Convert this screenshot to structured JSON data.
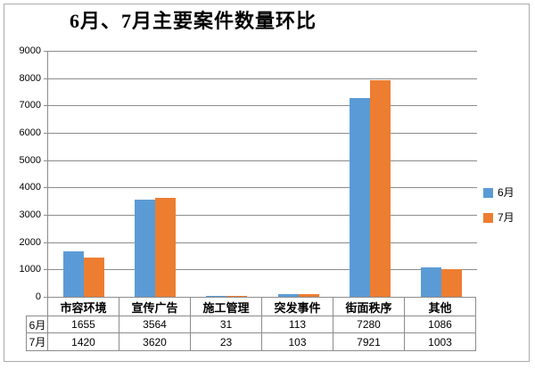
{
  "title": "6月、7月主要案件数量环比",
  "colors": {
    "series_june": "#5B9BD5",
    "series_july": "#ED7D31",
    "gridline": "#8c8c8c",
    "frame_border": "#ababab",
    "text": "#000000"
  },
  "chart_data": {
    "type": "bar",
    "title": "6月、7月主要案件数量环比",
    "categories": [
      "市容环境",
      "宣传广告",
      "施工管理",
      "突发事件",
      "街面秩序",
      "其他"
    ],
    "series": [
      {
        "name": "6月",
        "color": "#5B9BD5",
        "values": [
          1655,
          3564,
          31,
          113,
          7280,
          1086
        ]
      },
      {
        "name": "7月",
        "color": "#ED7D31",
        "values": [
          1420,
          3620,
          23,
          103,
          7921,
          1003
        ]
      }
    ],
    "xlabel": "",
    "ylabel": "",
    "ylim": [
      0,
      9000
    ],
    "ytick_step": 1000,
    "grid": true,
    "legend_position": "right",
    "data_table": true
  }
}
